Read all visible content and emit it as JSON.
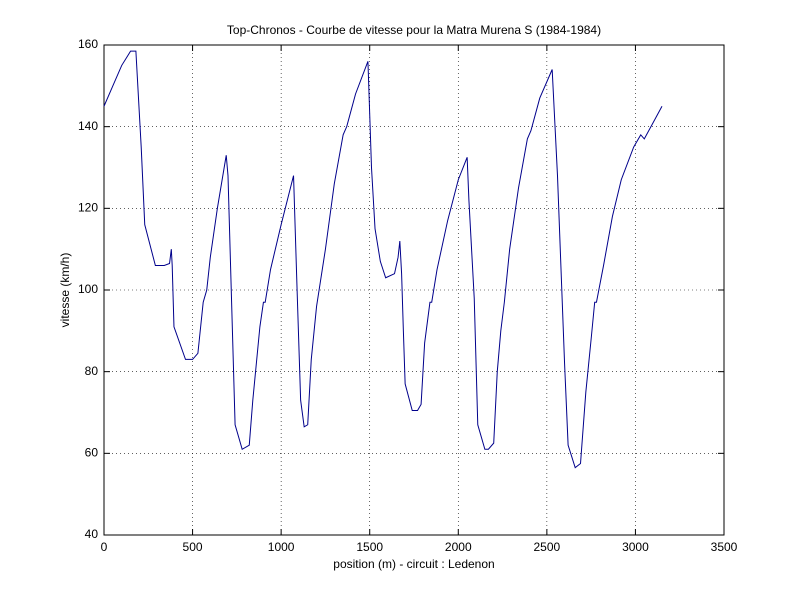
{
  "chart_data": {
    "type": "line",
    "title": "Top-Chronos - Courbe de vitesse pour la Matra Murena S (1984-1984)",
    "x_label": "position (m) - circuit : Ledenon",
    "y_label": "vitesse (km/h)",
    "x": [
      0,
      50,
      100,
      150,
      180,
      210,
      230,
      290,
      340,
      370,
      380,
      385,
      395,
      460,
      500,
      530,
      560,
      580,
      600,
      640,
      690,
      700,
      740,
      780,
      820,
      840,
      880,
      900,
      910,
      940,
      1000,
      1070,
      1090,
      1110,
      1130,
      1150,
      1170,
      1200,
      1250,
      1300,
      1350,
      1370,
      1420,
      1490,
      1510,
      1530,
      1560,
      1590,
      1640,
      1660,
      1670,
      1680,
      1690,
      1700,
      1740,
      1770,
      1790,
      1810,
      1840,
      1850,
      1880,
      1940,
      2000,
      2050,
      2060,
      2090,
      2110,
      2150,
      2170,
      2200,
      2220,
      2240,
      2260,
      2290,
      2340,
      2390,
      2410,
      2460,
      2530,
      2560,
      2600,
      2620,
      2660,
      2690,
      2720,
      2750,
      2770,
      2780,
      2820,
      2870,
      2920,
      2990,
      3030,
      3050,
      3100,
      3150
    ],
    "series": [
      {
        "name": "vitesse",
        "color": "#00008b",
        "values": [
          145,
          150,
          155,
          158.5,
          158.5,
          135,
          116,
          106,
          106,
          106.5,
          110,
          106,
          91,
          83,
          83,
          84.5,
          97,
          100,
          108,
          120,
          133,
          128,
          67,
          61,
          62,
          73,
          91,
          97,
          97,
          105,
          116,
          128,
          100,
          73,
          66.5,
          67,
          83,
          96,
          110,
          126,
          138,
          140,
          148,
          156,
          130,
          115,
          107,
          103,
          104,
          108,
          112,
          104,
          90,
          77,
          70.5,
          70.5,
          72,
          87,
          97,
          97,
          105,
          117,
          127,
          132.5,
          122,
          98,
          67,
          61,
          61,
          62.5,
          80,
          90,
          97,
          110,
          125,
          137,
          139,
          147,
          154,
          128,
          82,
          62,
          56.5,
          57.5,
          75,
          88,
          97,
          97,
          106,
          118,
          127,
          135,
          138,
          137,
          141,
          145
        ]
      }
    ],
    "xlim": [
      0,
      3500
    ],
    "xticks": [
      0,
      500,
      1000,
      1500,
      2000,
      2500,
      3000,
      3500
    ],
    "ylim": [
      40,
      160
    ],
    "yticks": [
      40,
      60,
      80,
      100,
      120,
      140,
      160
    ],
    "grid": true
  }
}
